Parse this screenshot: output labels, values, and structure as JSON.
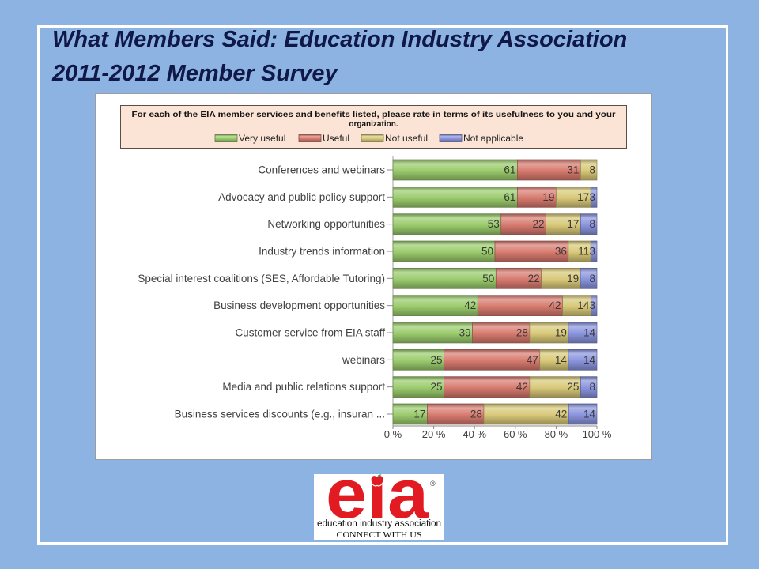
{
  "theme": {
    "background": "#8DB3E2",
    "frame": "#FFFFFF",
    "title_color": "#101848",
    "brand_color": "#E21B23"
  },
  "slide": {
    "title_lines": [
      "What Members Said: Education Industry Association",
      "2011-2012 Member Survey"
    ]
  },
  "chart_data": {
    "type": "bar",
    "orientation": "horizontal",
    "stacked": true,
    "percent_stacked": true,
    "title_lines": [
      "For each of the EIA member services and benefits listed, please rate in terms of its usefulness to you and your",
      "organization."
    ],
    "categories": [
      "Conferences and webinars",
      "Advocacy and public policy support",
      "Networking opportunities",
      "Industry trends information",
      "Special interest coalitions (SES, Affordable Tutoring)",
      "Business development opportunities",
      "Customer service from EIA staff",
      "webinars",
      "Media and public relations support",
      "Business services discounts (e.g., insuran ..."
    ],
    "series": [
      {
        "name": "Very useful",
        "color": "#9ACB6C",
        "values": [
          61,
          61,
          53,
          50,
          50,
          42,
          39,
          25,
          25,
          17
        ]
      },
      {
        "name": "Useful",
        "color": "#D77A6E",
        "values": [
          31,
          19,
          22,
          36,
          22,
          42,
          28,
          47,
          42,
          28
        ]
      },
      {
        "name": "Not useful",
        "color": "#D8C878",
        "values": [
          8,
          17,
          17,
          11,
          19,
          14,
          19,
          14,
          25,
          42
        ]
      },
      {
        "name": "Not applicable",
        "color": "#8A94DD",
        "values": [
          0,
          3,
          8,
          3,
          8,
          3,
          14,
          14,
          8,
          14
        ]
      }
    ],
    "x_ticks": [
      "0 %",
      "20 %",
      "40 %",
      "60 %",
      "80 %",
      "100 %"
    ],
    "xlim": [
      0,
      100
    ],
    "grid": false,
    "legend_position": "top",
    "data_labels": true
  },
  "logo": {
    "wordmark": "eia",
    "registered_mark": "®",
    "name": "education industry association",
    "tagline": "CONNECT WITH US"
  }
}
